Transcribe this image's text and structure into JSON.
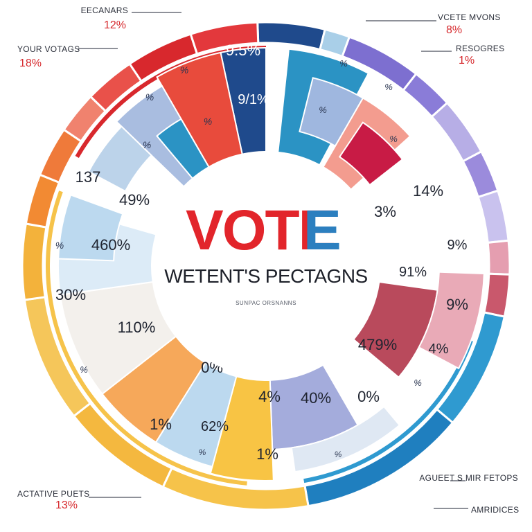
{
  "chart_data": {
    "type": "pie",
    "title": "VOTE",
    "title_accent": "E",
    "subtitle": "WETENT'S PECTAGNS",
    "caption": "SUNPAC ORSNANNS",
    "segments": [
      {
        "label": "9.5%",
        "color": "#1f4a8c",
        "text": "dark"
      },
      {
        "label": "9/1%",
        "color": "#1f4a8c",
        "text": "dark"
      },
      {
        "label": "%",
        "color": "#e84b3c",
        "text": "small"
      },
      {
        "label": "%",
        "color": "#e84b3c",
        "text": "small"
      },
      {
        "label": "%",
        "color": "#a9bde0",
        "text": "small"
      },
      {
        "label": "%",
        "color": "#a9bde0",
        "text": "small"
      },
      {
        "label": "%",
        "color": "#2b93c4",
        "text": "small"
      },
      {
        "label": "%",
        "color": "#2b93c4",
        "text": "small"
      },
      {
        "label": "%",
        "color": "#9fb7df",
        "text": "small"
      },
      {
        "label": "%",
        "color": "#f39c8f",
        "text": "small"
      },
      {
        "label": "14%",
        "color": "#ffffff",
        "text": "normal"
      },
      {
        "label": "3%",
        "color": "#ffffff",
        "text": "normal"
      },
      {
        "label": "91%",
        "color": "#b94a5c",
        "text": "normal"
      },
      {
        "label": "9%",
        "color": "#d98a9a",
        "text": "normal"
      },
      {
        "label": "9%",
        "color": "#f3d0d8",
        "text": "normal"
      },
      {
        "label": "4%",
        "color": "#ffffff",
        "text": "normal"
      },
      {
        "label": "479%",
        "color": "#ffffff",
        "text": "normal"
      },
      {
        "label": "%",
        "color": "#ffffff",
        "text": "small"
      },
      {
        "label": "0%",
        "color": "#a4acdc",
        "text": "normal"
      },
      {
        "label": "40%",
        "color": "#a4acdc",
        "text": "normal"
      },
      {
        "label": "%",
        "color": "#dfe8f3",
        "text": "small"
      },
      {
        "label": "4%",
        "color": "#f8c444",
        "text": "normal"
      },
      {
        "label": "1%",
        "color": "#f8c444",
        "text": "normal"
      },
      {
        "label": "62%",
        "color": "#bcd9ef",
        "text": "normal"
      },
      {
        "label": "%",
        "color": "#bcd9ef",
        "text": "small"
      },
      {
        "label": "1%",
        "color": "#f6a85a",
        "text": "normal"
      },
      {
        "label": "0%",
        "color": "#f3f0ec",
        "text": "normal"
      },
      {
        "label": "110%",
        "color": "#f3f0ec",
        "text": "normal"
      },
      {
        "label": "%",
        "color": "#f3f0ec",
        "text": "small"
      },
      {
        "label": "30%",
        "color": "#dcebf7",
        "text": "normal"
      },
      {
        "label": "460%",
        "color": "#bcd9ef",
        "text": "normal"
      },
      {
        "label": "%",
        "color": "#bcd9ef",
        "text": "small"
      },
      {
        "label": "49%",
        "color": "#ffffff",
        "text": "normal"
      },
      {
        "label": "137",
        "color": "#ffffff",
        "text": "normal"
      }
    ],
    "callouts": [
      {
        "title": "EECANARS",
        "value": "12%"
      },
      {
        "title": "YOUR VOTAGS",
        "value": "18%"
      },
      {
        "title": "VCETE MVONS",
        "value": "8%"
      },
      {
        "title": "RESOGRES",
        "value": "1%"
      },
      {
        "title": "ACTATIVE PUETS",
        "value": "13%"
      },
      {
        "title": "AGUEET S MIR FETOPS",
        "value": ""
      },
      {
        "title": "AMRIDICES",
        "value": ""
      }
    ]
  }
}
